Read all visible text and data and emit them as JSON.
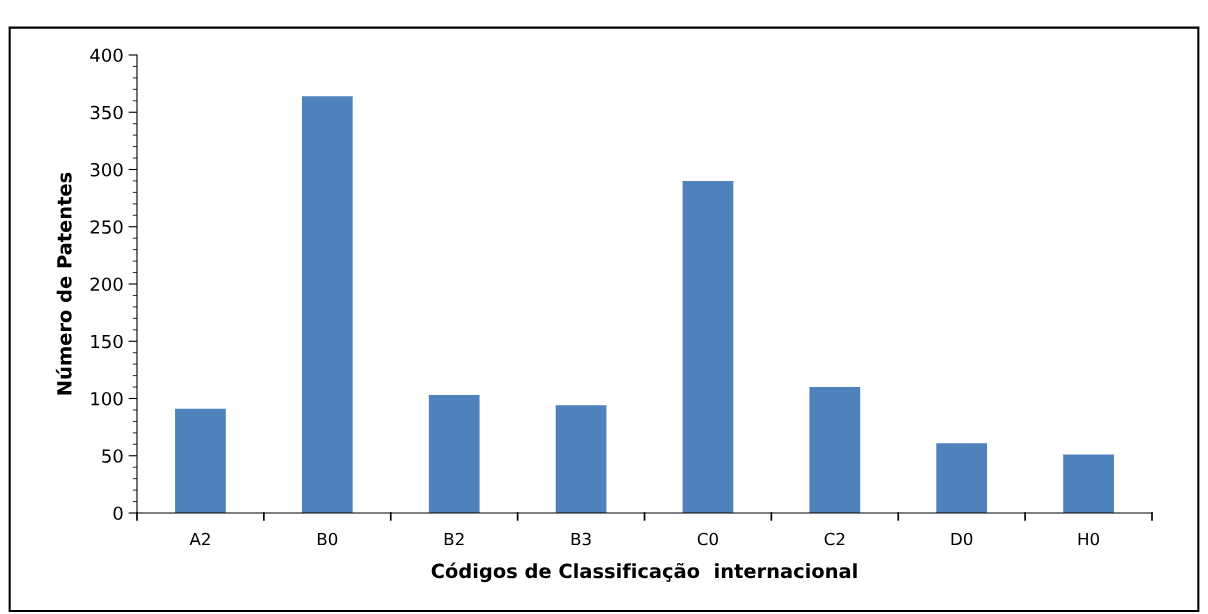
{
  "chart_data": {
    "type": "bar",
    "xlabel": "Códigos de Classificação  internacional",
    "ylabel": "Número de Patentes",
    "categories": [
      "A2",
      "B0",
      "B2",
      "B3",
      "C0",
      "C2",
      "D0",
      "H0"
    ],
    "values": [
      91,
      364,
      103,
      94,
      290,
      110,
      61,
      51
    ],
    "color": "#4f81bd",
    "ylim": [
      0,
      400
    ],
    "yticks": [
      0,
      50,
      100,
      150,
      200,
      250,
      300,
      350,
      400
    ],
    "grid": false,
    "legend": false
  }
}
